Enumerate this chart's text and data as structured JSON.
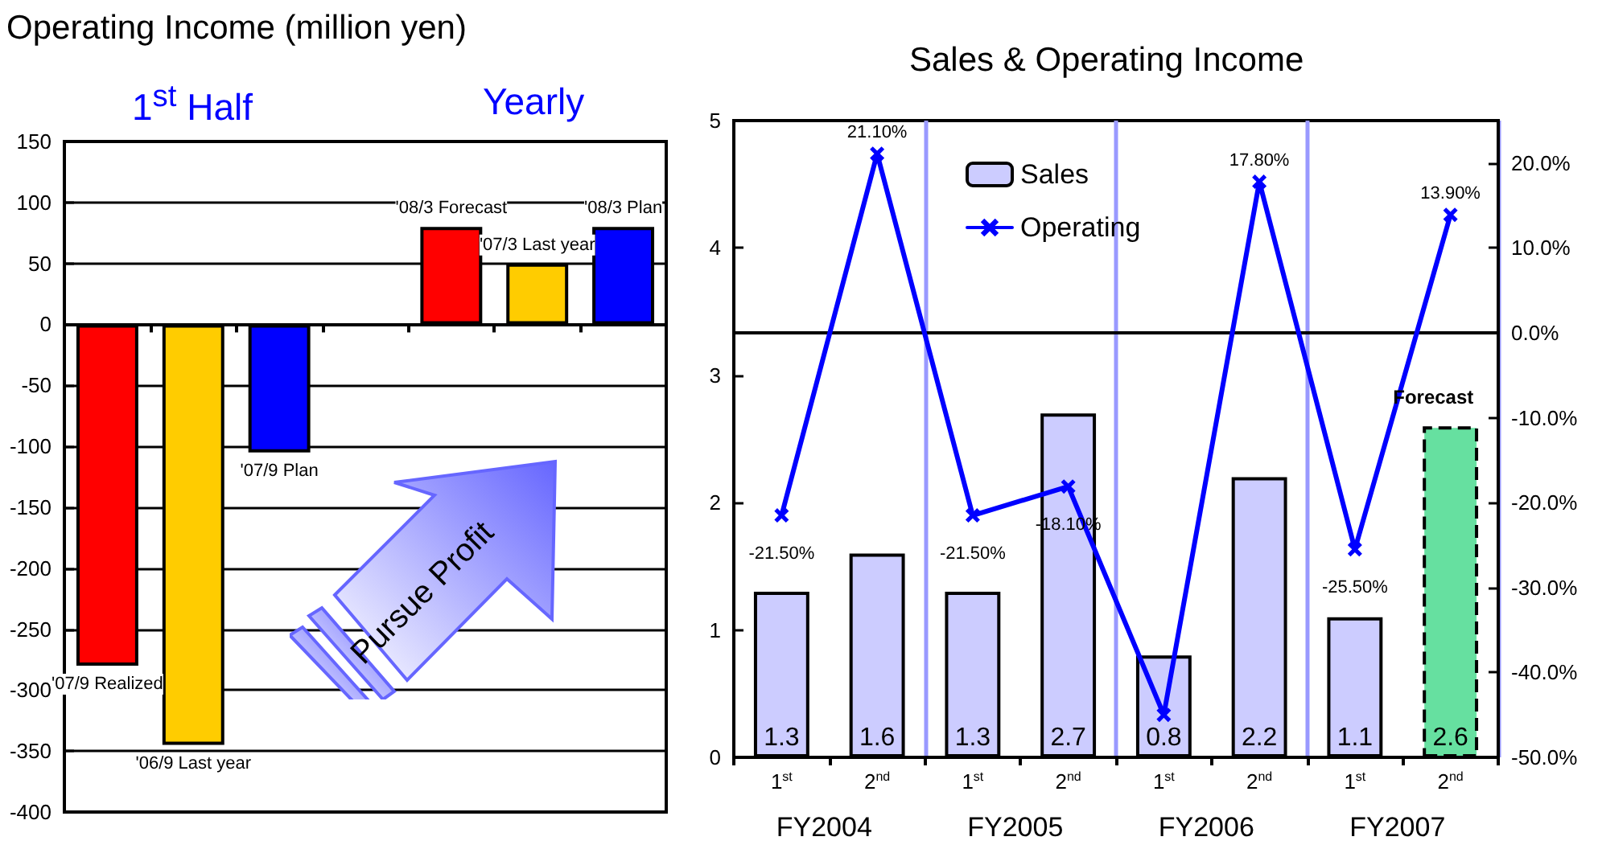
{
  "chart_data": [
    {
      "type": "bar",
      "title": "Operating Income (million yen)",
      "categories": [
        null,
        null,
        null,
        null,
        null,
        null,
        null
      ],
      "values": [
        -280,
        -345,
        -105,
        null,
        80,
        50,
        80
      ],
      "colors": [
        "#ff0000",
        "#ffcc00",
        "#0000ff",
        null,
        "#ff0000",
        "#ffcc00",
        "#0000ff"
      ],
      "value_labels": [
        "'07/9 Realized",
        "'06/9 Last year",
        "'07/9 Plan",
        null,
        "'08/3 Forecast",
        "'07/3 Last year",
        "'08/3 Plan"
      ],
      "ylim": [
        -400,
        150
      ],
      "yticks": [
        -400,
        -350,
        -300,
        -250,
        -200,
        -150,
        -100,
        -50,
        0,
        50,
        100,
        150
      ],
      "grid": "y",
      "tick_labels": "y",
      "legend": false,
      "annotations": [
        "1$^{st}$ Half",
        "Yearly",
        "Pursue Profit"
      ]
    },
    {
      "type": "bar",
      "title": "Sales & Operating Income",
      "categories": [
        "1$^{st}$",
        "2$^{nd}$",
        "1$^{st}$",
        "2$^{nd}$",
        "1$^{st}$",
        "2$^{nd}$",
        "1$^{st}$",
        "2$^{nd}$"
      ],
      "series": [
        {
          "name": "Sales",
          "type": "bar",
          "color": "#ccccff",
          "colors": [
            "#ccccff",
            "#ccccff",
            "#ccccff",
            "#ccccff",
            "#ccccff",
            "#ccccff",
            "#ccccff",
            "#66e0a0"
          ],
          "values": [
            1.3,
            1.6,
            1.3,
            2.7,
            0.8,
            2.2,
            1.1,
            2.6
          ],
          "data_labels": true
        },
        {
          "name": "Operating",
          "type": "line",
          "axis": "y2",
          "color": "#0000ff",
          "marker": "cross",
          "line_style": "solid",
          "values": [
            -21.5,
            21.1,
            -21.5,
            -18.1,
            -45,
            17.8,
            -25.5,
            13.9
          ],
          "value_labels": [
            "-21.50%",
            "21.10%",
            "-21.50%",
            "-18.10%",
            null,
            "17.80%",
            "-25.50%",
            "13.90%"
          ]
        }
      ],
      "ylim": [
        0,
        5
      ],
      "yticks": [
        0,
        1,
        2,
        3,
        4,
        5
      ],
      "y2lim": [
        -50,
        25
      ],
      "y2ticks": [
        {
          "value": -50,
          "label": "-50.0%"
        },
        {
          "value": -40,
          "label": "-40.0%"
        },
        {
          "value": -30,
          "label": "-30.0%"
        },
        {
          "value": -20,
          "label": "-20.0%"
        },
        {
          "value": -10,
          "label": "-10.0%"
        },
        {
          "value": 0,
          "label": "0.0%"
        },
        {
          "value": 10,
          "label": "10.0%"
        },
        {
          "value": 20,
          "label": "20.0%"
        }
      ],
      "ref_lines": [
        {
          "axis": "y2",
          "value": 0,
          "label": null,
          "color": "#000000"
        }
      ],
      "grid": "x",
      "legend": "top left",
      "annotations": [
        "FY2004",
        "FY2005",
        "FY2006",
        "FY2007",
        "Forecast"
      ]
    }
  ]
}
